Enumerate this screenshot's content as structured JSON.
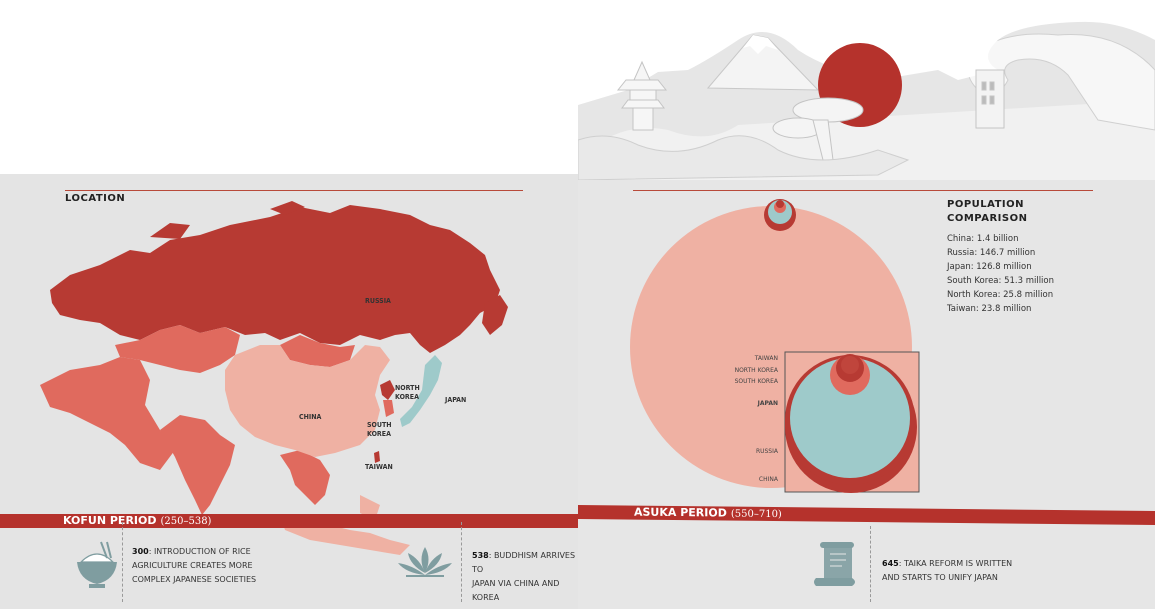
{
  "left": {
    "section_title": "LOCATION",
    "map_labels": {
      "russia": "RUSSIA",
      "china": "CHINA",
      "north_korea": "NORTH KOREA",
      "south_korea": "SOUTH KOREA",
      "japan": "JAPAN",
      "taiwan": "TAIWAN"
    },
    "period": {
      "name": "KOFUN PERIOD",
      "years": "(250–538)"
    },
    "events": [
      {
        "year": "300",
        "text_line1": ": INTRODUCTION OF RICE",
        "text_line2": "AGRICULTURE CREATES MORE",
        "text_line3": "COMPLEX JAPANESE SOCIETIES"
      },
      {
        "year": "538",
        "text_line1": ": BUDDHISM ARRIVES TO",
        "text_line2": "JAPAN VIA CHINA AND KOREA"
      }
    ]
  },
  "right": {
    "section_title_line1": "POPULATION",
    "section_title_line2": "COMPARISON",
    "populations": [
      "China: 1.4 billion",
      "Russia: 146.7 million",
      "Japan: 126.8 million",
      "South Korea: 51.3 million",
      "North Korea: 25.8 million",
      "Taiwan: 23.8 million"
    ],
    "circle_labels": {
      "taiwan": "TAIWAN",
      "north_korea": "NORTH KOREA",
      "south_korea": "SOUTH KOREA",
      "japan": "JAPAN",
      "russia": "RUSSIA",
      "china": "CHINA"
    },
    "period": {
      "name": "ASUKA PERIOD",
      "years": "(550–710)"
    },
    "events": [
      {
        "year": "645",
        "text_line1": ": TAIKA REFORM IS WRITTEN",
        "text_line2": "AND STARTS TO UNIFY JAPAN"
      }
    ]
  },
  "colors": {
    "accent": "#b5322c",
    "dark_red": "#b73a33",
    "mid_red": "#e06a5e",
    "pink": "#efb1a3",
    "teal": "#9ecaca"
  },
  "icons": [
    "rice-bowl-icon",
    "lotus-icon",
    "scroll-icon",
    "pagoda-icon",
    "mount-fuji-icon",
    "rising-sun-icon",
    "wave-icon",
    "bonsai-icon"
  ]
}
